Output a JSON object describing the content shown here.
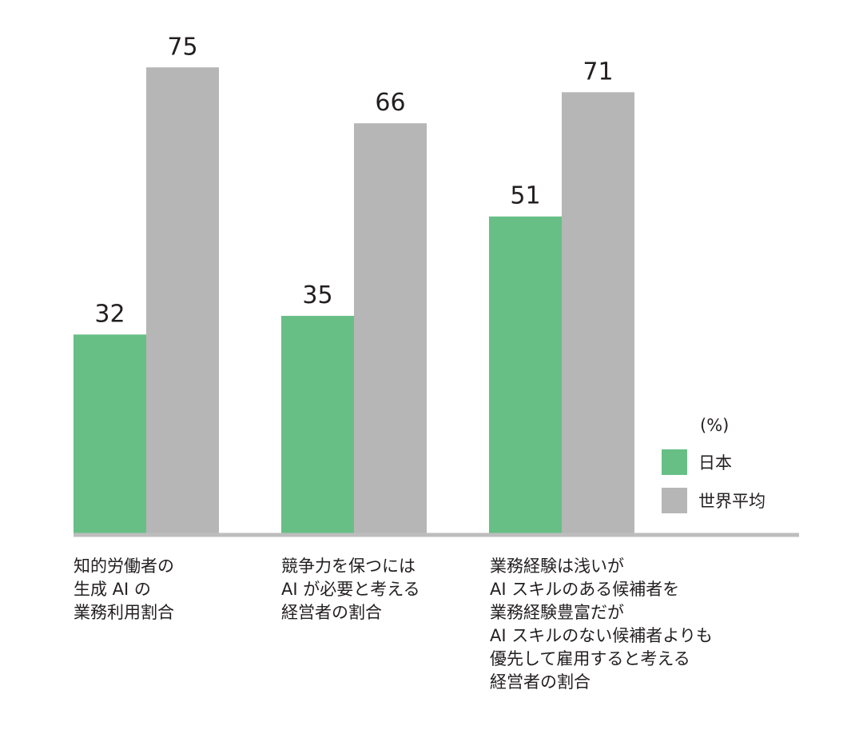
{
  "chart_data": {
    "type": "bar",
    "unit": "(%)",
    "categories": [
      "知的労働者の\n生成 AI の\n業務利用割合",
      "競争力を保つには\nAI が必要と考える\n経営者の割合",
      "業務経験は浅いが\nAI スキルのある候補者を\n業務経験豊富だが\nAI スキルのない候補者よりも\n優先して雇用すると考える\n経営者の割合"
    ],
    "series": [
      {
        "name": "日本",
        "values": [
          32,
          35,
          51
        ],
        "color": "#67bf86"
      },
      {
        "name": "世界平均",
        "values": [
          75,
          66,
          71
        ],
        "color": "#b5b6b5"
      }
    ],
    "ylim": [
      0,
      80
    ],
    "grid": false,
    "legend_position": "bottom-right",
    "baseline_color": "#bdbdbd",
    "label_color": "#231f20"
  }
}
